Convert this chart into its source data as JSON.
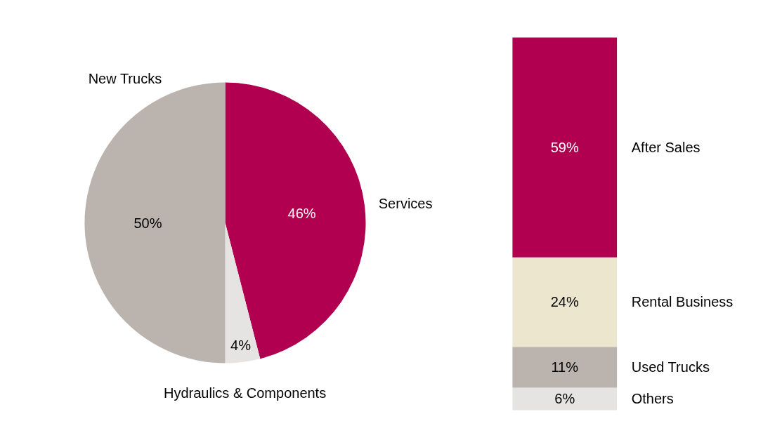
{
  "chart_data": [
    {
      "type": "pie",
      "categories": [
        "Services",
        "Hydraulics & Components",
        "New Trucks"
      ],
      "values": [
        46,
        4,
        50
      ],
      "colors": [
        "#b0004f",
        "#e6e4e3",
        "#bab3ae"
      ],
      "value_labels": [
        "46%",
        "4%",
        "50%"
      ]
    },
    {
      "type": "bar",
      "stacked": true,
      "categories": [
        null
      ],
      "legend": false,
      "series": [
        {
          "name": "Others",
          "color": "#e6e4e3",
          "values": [
            6
          ],
          "value_labels": [
            "6%"
          ]
        },
        {
          "name": "Used Trucks",
          "color": "#bab3ae",
          "values": [
            11
          ],
          "value_labels": [
            "11%"
          ]
        },
        {
          "name": "Rental Business",
          "color": "#ede6cf",
          "values": [
            24
          ],
          "value_labels": [
            "24%"
          ]
        },
        {
          "name": "After Sales",
          "color": "#b0004f",
          "values": [
            59
          ],
          "value_labels": [
            "59%"
          ]
        }
      ]
    }
  ]
}
